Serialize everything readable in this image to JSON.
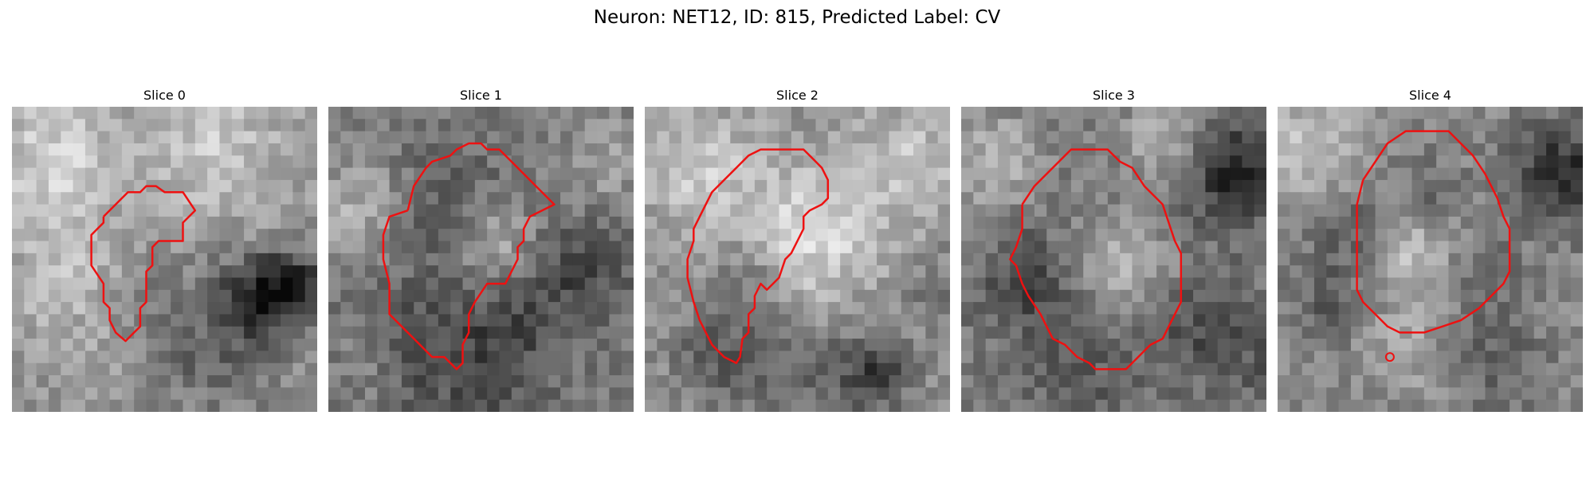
{
  "figure": {
    "title": "Neuron: NET12, ID: 815, Predicted Label: CV"
  },
  "panels": [
    {
      "title": "Slice 0"
    },
    {
      "title": "Slice 1"
    },
    {
      "title": "Slice 2"
    },
    {
      "title": "Slice 3"
    },
    {
      "title": "Slice 4"
    }
  ],
  "colors": {
    "contour": "#ee1111",
    "background": "#ffffff"
  }
}
